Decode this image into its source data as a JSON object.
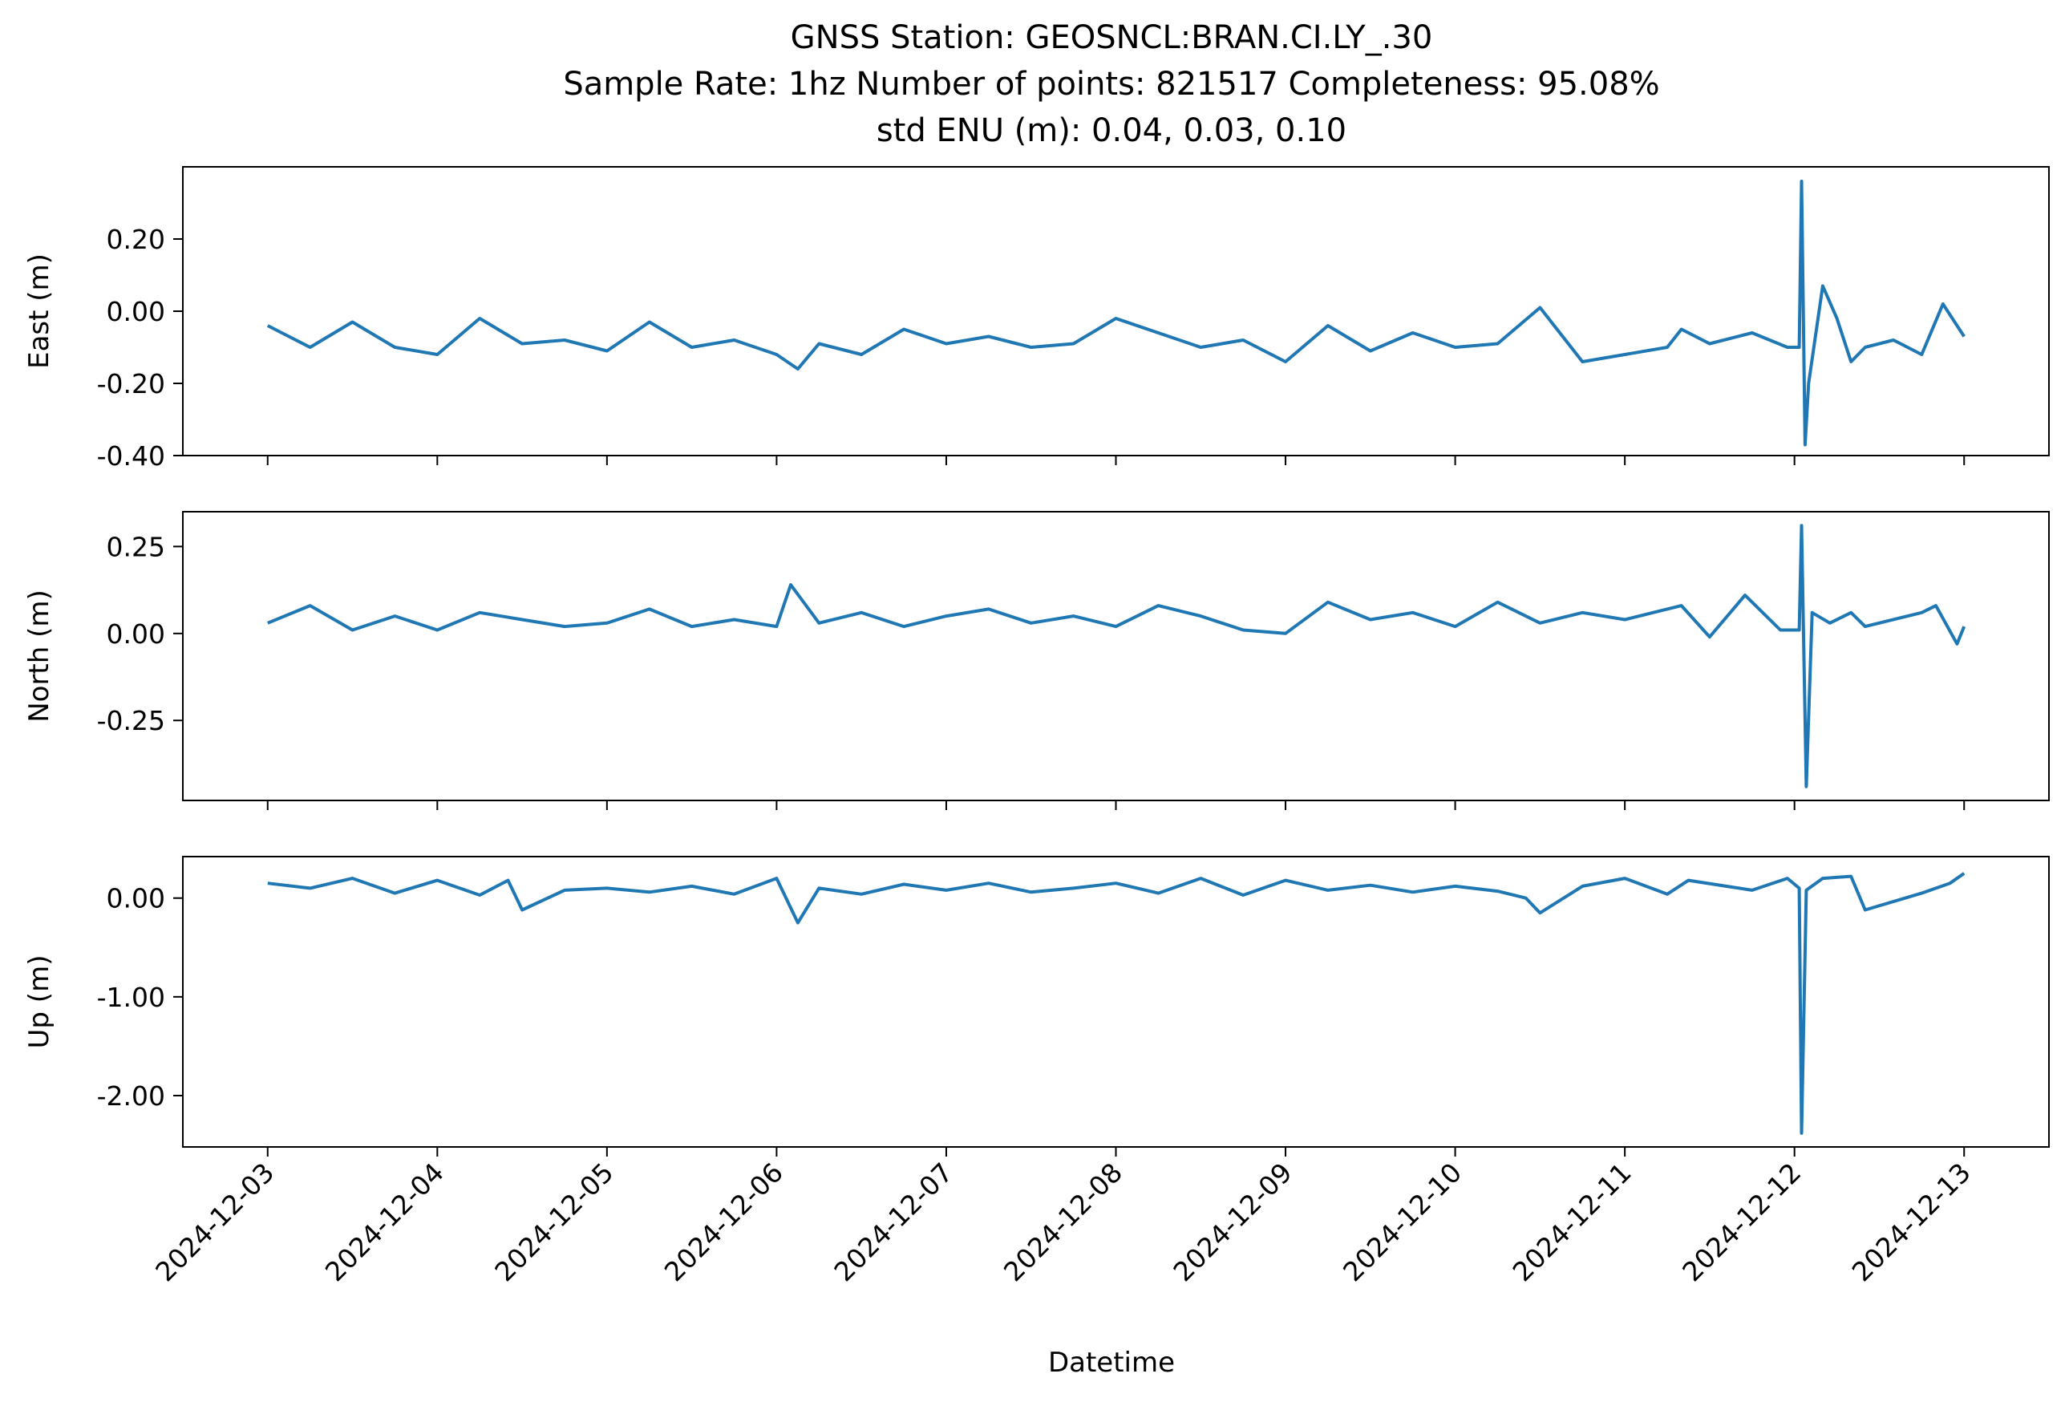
{
  "title": {
    "line1": "GNSS Station: GEOSNCL:BRAN.CI.LY_.30",
    "line2": "Sample Rate: 1hz   Number of points: 821517    Completeness:  95.08%",
    "line3": "std ENU (m):  0.04, 0.03, 0.10"
  },
  "colors": {
    "series": "#1f77b4"
  },
  "chart_data": [
    {
      "type": "line",
      "panel": "east",
      "ylabel": "East (m)",
      "xlabel": "",
      "ylim": [
        -0.4,
        0.4
      ],
      "yticks": [
        -0.4,
        -0.2,
        0.0,
        0.2
      ],
      "ytick_labels": [
        "-0.40",
        "-0.20",
        "0.00",
        "0.20"
      ],
      "xlim": [
        "2024-12-02T12:00",
        "2024-12-13T12:00"
      ],
      "series": [
        {
          "x": [
            "2024-12-03T00:00",
            "2024-12-03T06:00",
            "2024-12-03T12:00",
            "2024-12-03T18:00",
            "2024-12-04T00:00",
            "2024-12-04T06:00",
            "2024-12-04T12:00",
            "2024-12-04T18:00",
            "2024-12-05T00:00",
            "2024-12-05T06:00",
            "2024-12-05T12:00",
            "2024-12-05T18:00",
            "2024-12-06T00:00",
            "2024-12-06T03:00",
            "2024-12-06T06:00",
            "2024-12-06T12:00",
            "2024-12-06T18:00",
            "2024-12-07T00:00",
            "2024-12-07T06:00",
            "2024-12-07T12:00",
            "2024-12-07T18:00",
            "2024-12-08T00:00",
            "2024-12-08T06:00",
            "2024-12-08T12:00",
            "2024-12-08T18:00",
            "2024-12-09T00:00",
            "2024-12-09T06:00",
            "2024-12-09T12:00",
            "2024-12-09T18:00",
            "2024-12-10T00:00",
            "2024-12-10T06:00",
            "2024-12-10T12:00",
            "2024-12-10T18:00",
            "2024-12-11T00:00",
            "2024-12-11T06:00",
            "2024-12-11T08:00",
            "2024-12-11T12:00",
            "2024-12-11T18:00",
            "2024-12-11T23:00",
            "2024-12-12T00:40",
            "2024-12-12T01:00",
            "2024-12-12T01:30",
            "2024-12-12T02:00",
            "2024-12-12T04:00",
            "2024-12-12T06:00",
            "2024-12-12T08:00",
            "2024-12-12T10:00",
            "2024-12-12T14:00",
            "2024-12-12T18:00",
            "2024-12-12T21:00",
            "2024-12-13T00:00"
          ],
          "y": [
            -0.04,
            -0.1,
            -0.03,
            -0.1,
            -0.12,
            -0.02,
            -0.09,
            -0.08,
            -0.11,
            -0.03,
            -0.1,
            -0.08,
            -0.12,
            -0.16,
            -0.09,
            -0.12,
            -0.05,
            -0.09,
            -0.07,
            -0.1,
            -0.09,
            -0.02,
            -0.06,
            -0.1,
            -0.08,
            -0.14,
            -0.04,
            -0.11,
            -0.06,
            -0.1,
            -0.09,
            0.01,
            -0.14,
            -0.12,
            -0.1,
            -0.05,
            -0.09,
            -0.06,
            -0.1,
            -0.1,
            0.36,
            -0.37,
            -0.2,
            0.07,
            -0.02,
            -0.14,
            -0.1,
            -0.08,
            -0.12,
            0.02,
            -0.07
          ]
        }
      ]
    },
    {
      "type": "line",
      "panel": "north",
      "ylabel": "North (m)",
      "xlabel": "",
      "ylim": [
        -0.48,
        0.35
      ],
      "yticks": [
        -0.25,
        0.0,
        0.25
      ],
      "ytick_labels": [
        "-0.25",
        "0.00",
        "0.25"
      ],
      "xlim": [
        "2024-12-02T12:00",
        "2024-12-13T12:00"
      ],
      "series": [
        {
          "x": [
            "2024-12-03T00:00",
            "2024-12-03T06:00",
            "2024-12-03T12:00",
            "2024-12-03T18:00",
            "2024-12-04T00:00",
            "2024-12-04T06:00",
            "2024-12-04T12:00",
            "2024-12-04T18:00",
            "2024-12-05T00:00",
            "2024-12-05T06:00",
            "2024-12-05T12:00",
            "2024-12-05T18:00",
            "2024-12-06T00:00",
            "2024-12-06T02:00",
            "2024-12-06T06:00",
            "2024-12-06T12:00",
            "2024-12-06T18:00",
            "2024-12-07T00:00",
            "2024-12-07T06:00",
            "2024-12-07T12:00",
            "2024-12-07T18:00",
            "2024-12-08T00:00",
            "2024-12-08T06:00",
            "2024-12-08T12:00",
            "2024-12-08T18:00",
            "2024-12-09T00:00",
            "2024-12-09T06:00",
            "2024-12-09T12:00",
            "2024-12-09T18:00",
            "2024-12-10T00:00",
            "2024-12-10T06:00",
            "2024-12-10T12:00",
            "2024-12-10T18:00",
            "2024-12-11T00:00",
            "2024-12-11T06:00",
            "2024-12-11T08:00",
            "2024-12-11T12:00",
            "2024-12-11T17:00",
            "2024-12-11T22:00",
            "2024-12-12T00:40",
            "2024-12-12T01:00",
            "2024-12-12T01:40",
            "2024-12-12T02:30",
            "2024-12-12T05:00",
            "2024-12-12T08:00",
            "2024-12-12T10:00",
            "2024-12-12T18:00",
            "2024-12-12T20:00",
            "2024-12-12T23:00",
            "2024-12-13T00:00"
          ],
          "y": [
            0.03,
            0.08,
            0.01,
            0.05,
            0.01,
            0.06,
            0.04,
            0.02,
            0.03,
            0.07,
            0.02,
            0.04,
            0.02,
            0.14,
            0.03,
            0.06,
            0.02,
            0.05,
            0.07,
            0.03,
            0.05,
            0.02,
            0.08,
            0.05,
            0.01,
            0.0,
            0.09,
            0.04,
            0.06,
            0.02,
            0.09,
            0.03,
            0.06,
            0.04,
            0.07,
            0.08,
            -0.01,
            0.11,
            0.01,
            0.01,
            0.31,
            -0.44,
            0.06,
            0.03,
            0.06,
            0.02,
            0.06,
            0.08,
            -0.03,
            0.02
          ]
        }
      ]
    },
    {
      "type": "line",
      "panel": "up",
      "ylabel": "Up (m)",
      "xlabel": "Datetime",
      "ylim": [
        -2.52,
        0.42
      ],
      "yticks": [
        -2.0,
        -1.0,
        0.0
      ],
      "ytick_labels": [
        "-2.00",
        "-1.00",
        "0.00"
      ],
      "xlim": [
        "2024-12-02T12:00",
        "2024-12-13T12:00"
      ],
      "xticks": [
        "2024-12-03",
        "2024-12-04",
        "2024-12-05",
        "2024-12-06",
        "2024-12-07",
        "2024-12-08",
        "2024-12-09",
        "2024-12-10",
        "2024-12-11",
        "2024-12-12",
        "2024-12-13"
      ],
      "series": [
        {
          "x": [
            "2024-12-03T00:00",
            "2024-12-03T06:00",
            "2024-12-03T12:00",
            "2024-12-03T18:00",
            "2024-12-04T00:00",
            "2024-12-04T06:00",
            "2024-12-04T10:00",
            "2024-12-04T12:00",
            "2024-12-04T18:00",
            "2024-12-05T00:00",
            "2024-12-05T06:00",
            "2024-12-05T12:00",
            "2024-12-05T18:00",
            "2024-12-06T00:00",
            "2024-12-06T03:00",
            "2024-12-06T06:00",
            "2024-12-06T12:00",
            "2024-12-06T18:00",
            "2024-12-07T00:00",
            "2024-12-07T06:00",
            "2024-12-07T12:00",
            "2024-12-07T18:00",
            "2024-12-08T00:00",
            "2024-12-08T06:00",
            "2024-12-08T12:00",
            "2024-12-08T18:00",
            "2024-12-09T00:00",
            "2024-12-09T06:00",
            "2024-12-09T12:00",
            "2024-12-09T18:00",
            "2024-12-10T00:00",
            "2024-12-10T06:00",
            "2024-12-10T10:00",
            "2024-12-10T12:00",
            "2024-12-10T18:00",
            "2024-12-11T00:00",
            "2024-12-11T06:00",
            "2024-12-11T09:00",
            "2024-12-11T18:00",
            "2024-12-11T23:00",
            "2024-12-12T00:40",
            "2024-12-12T01:00",
            "2024-12-12T01:40",
            "2024-12-12T04:00",
            "2024-12-12T08:00",
            "2024-12-12T10:00",
            "2024-12-12T18:00",
            "2024-12-12T22:00",
            "2024-12-13T00:00"
          ],
          "y": [
            0.15,
            0.1,
            0.2,
            0.05,
            0.18,
            0.03,
            0.18,
            -0.12,
            0.08,
            0.1,
            0.06,
            0.12,
            0.04,
            0.2,
            -0.25,
            0.1,
            0.04,
            0.14,
            0.08,
            0.15,
            0.06,
            0.1,
            0.15,
            0.05,
            0.2,
            0.03,
            0.18,
            0.08,
            0.13,
            0.06,
            0.12,
            0.07,
            0.0,
            -0.15,
            0.12,
            0.2,
            0.04,
            0.18,
            0.08,
            0.2,
            0.1,
            -2.38,
            0.08,
            0.2,
            0.22,
            -0.12,
            0.05,
            0.15,
            0.25
          ]
        }
      ]
    }
  ]
}
